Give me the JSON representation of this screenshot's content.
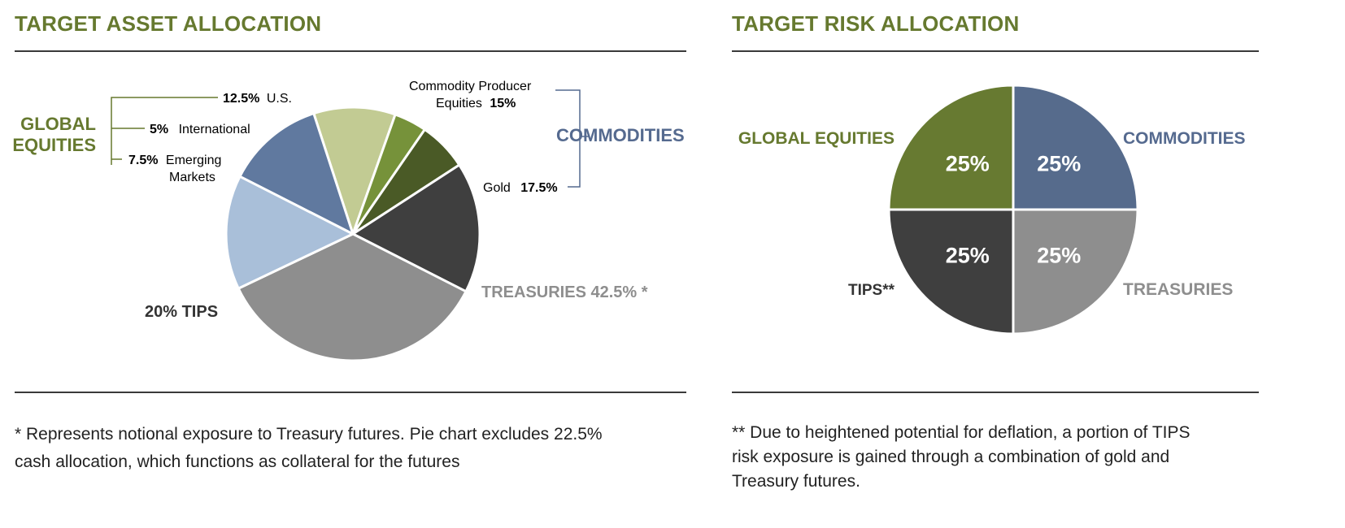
{
  "left_panel": {
    "title": "TARGET ASSET ALLOCATION",
    "footnote_line1": "* Represents notional exposure to Treasury futures. Pie chart excludes 22.5%",
    "footnote_line2": "cash allocation, which functions as collateral for the futures"
  },
  "right_panel": {
    "title": "TARGET RISK ALLOCATION",
    "footnote_line1": "** Due to heightened potential for deflation, a portion of TIPS",
    "footnote_line2": "risk exposure is gained through a combination of gold and",
    "footnote_line3": "Treasury futures."
  },
  "chart_data": [
    {
      "type": "pie",
      "title": "TARGET ASSET ALLOCATION",
      "slices": [
        {
          "name": "U.S.",
          "value": 12.5,
          "group": "GLOBAL EQUITIES",
          "color": "#c2cb93",
          "value_label": "12.5%",
          "name_label": "U.S."
        },
        {
          "name": "International",
          "value": 5,
          "group": "GLOBAL EQUITIES",
          "color": "#76923a",
          "value_label": "5%",
          "name_label": "International"
        },
        {
          "name": "Emerging Markets",
          "value": 7.5,
          "group": "GLOBAL EQUITIES",
          "color": "#4a5a26",
          "value_label": "7.5%",
          "name_label": "Emerging",
          "name_label2": "Markets"
        },
        {
          "name": "TIPS",
          "value": 20,
          "group": "",
          "color": "#3f3f3f",
          "label": "20% TIPS"
        },
        {
          "name": "Treasuries",
          "value": 42.5,
          "group": "",
          "color": "#8e8e8e",
          "label": "TREASURIES 42.5% *"
        },
        {
          "name": "Gold",
          "value": 17.5,
          "group": "COMMODITIES",
          "color": "#a9bfd9",
          "name_label": "Gold",
          "value_label": "17.5%"
        },
        {
          "name": "Commodity Producer Equities",
          "value": 15,
          "group": "COMMODITIES",
          "color": "#60799f",
          "name_label": "Commodity Producer",
          "name_label2": "Equities",
          "value_label": "15%"
        }
      ],
      "groups": [
        {
          "name": "GLOBAL EQUITIES",
          "line1": "GLOBAL",
          "line2": "EQUITIES",
          "color": "#66792f"
        },
        {
          "name": "COMMODITIES",
          "line1": "COMMODITIES",
          "color": "#556a8f"
        }
      ]
    },
    {
      "type": "pie",
      "title": "TARGET RISK ALLOCATION",
      "slices": [
        {
          "name": "COMMODITIES",
          "value": 25,
          "color": "#566b8c",
          "value_label": "25%",
          "label": "COMMODITIES",
          "label_color": "#556a8f"
        },
        {
          "name": "TREASURIES",
          "value": 25,
          "color": "#8e8e8e",
          "value_label": "25%",
          "label": "TREASURIES",
          "label_color": "#8e8e8e"
        },
        {
          "name": "TIPS",
          "value": 25,
          "color": "#3f3f3f",
          "value_label": "25%",
          "label": "TIPS**",
          "label_color": "#333333"
        },
        {
          "name": "GLOBAL EQUITIES",
          "value": 25,
          "color": "#677a31",
          "value_label": "25%",
          "label": "GLOBAL EQUITIES",
          "label_color": "#66792f"
        }
      ]
    }
  ]
}
